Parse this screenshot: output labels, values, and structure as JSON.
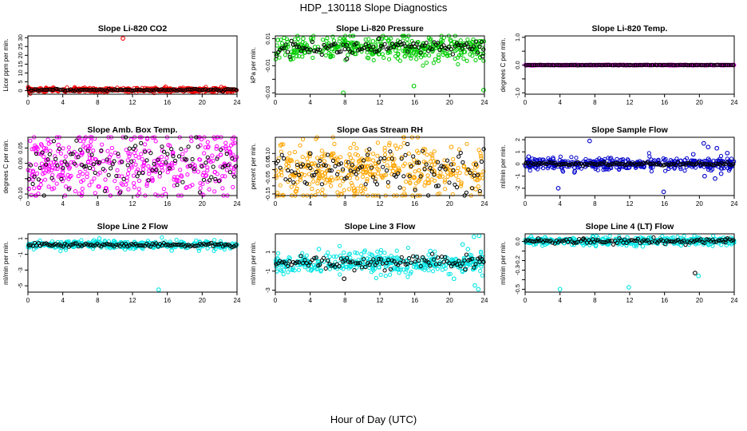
{
  "page": {
    "title": "HDP_130118  Slope Diagnostics",
    "xcaption": "Hour of Day (UTC)"
  },
  "colors": {
    "axis": "#000000",
    "hourly_points": "#000000"
  },
  "chart_data": [
    {
      "type": "scatter",
      "title": "Slope Li-820 CO2",
      "ylabel": "Licor ppm per min.",
      "xlim": [
        0,
        24
      ],
      "ylim": [
        -2,
        31
      ],
      "xticks": [
        0,
        4,
        8,
        12,
        16,
        20,
        24
      ],
      "yticks": [
        0,
        5,
        10,
        15,
        20,
        25,
        30
      ],
      "grid": false,
      "series": [
        {
          "color": "#ff0000",
          "marker": "circle",
          "spread": 0.6,
          "baseline": 0.4,
          "points": [
            [
              10.9,
              29.6
            ],
            [
              15.8,
              2.1
            ],
            [
              0.2,
              0.8
            ],
            [
              7.1,
              1.4
            ],
            [
              21.4,
              1.3
            ]
          ]
        },
        {
          "color": "#000000",
          "marker": "circle",
          "spread": 0.3,
          "baseline": 0.4,
          "points": []
        }
      ]
    },
    {
      "type": "scatter",
      "title": "Slope Li-820 Pressure",
      "ylabel": "kPa per min.",
      "xlim": [
        0,
        24
      ],
      "ylim": [
        -0.031,
        0.012
      ],
      "xticks": [
        0,
        4,
        8,
        12,
        16,
        20,
        24
      ],
      "yticks": [
        -0.03,
        -0.02,
        -0.01,
        0.0,
        0.01
      ],
      "yticklabels": [
        "-0.03",
        "-0.01",
        "0.01"
      ],
      "grid": false,
      "series": [
        {
          "color": "#00cc00",
          "marker": "circle",
          "spread": 0.0045,
          "baseline": 0.003,
          "points": [
            [
              7.8,
              -0.03
            ],
            [
              15.9,
              -0.025
            ],
            [
              23.9,
              -0.028
            ],
            [
              0.3,
              0.009
            ],
            [
              3.2,
              0.01
            ],
            [
              11.2,
              0.008
            ],
            [
              20.1,
              0.009
            ]
          ]
        },
        {
          "color": "#000000",
          "marker": "circle",
          "spread": 0.0025,
          "baseline": 0.003,
          "points": [
            [
              11.9,
              0.01
            ],
            [
              8.2,
              -0.005
            ],
            [
              23.8,
              -0.003
            ]
          ]
        }
      ]
    },
    {
      "type": "scatter",
      "title": "Slope Li-820 Temp.",
      "ylabel": "degrees C per min.",
      "xlim": [
        0,
        24
      ],
      "ylim": [
        -1.05,
        1.05
      ],
      "xticks": [
        0,
        4,
        8,
        12,
        16,
        20,
        24
      ],
      "yticks": [
        -1.0,
        -0.5,
        0.0,
        0.5,
        1.0
      ],
      "yticklabels": [
        "-1.0",
        "0.0",
        "1.0"
      ],
      "grid": false,
      "series": [
        {
          "color": "#ff00ff",
          "marker": "circle",
          "spread": 0.005,
          "baseline": 0.0,
          "points": []
        },
        {
          "color": "#000000",
          "marker": "circle",
          "spread": 0.004,
          "baseline": 0.0,
          "points": []
        }
      ]
    },
    {
      "type": "scatter",
      "title": "Slope Amb. Box Temp.",
      "ylabel": "degrees C per min.",
      "xlim": [
        0,
        24
      ],
      "ylim": [
        -0.105,
        0.085
      ],
      "xticks": [
        0,
        4,
        8,
        12,
        16,
        20,
        24
      ],
      "yticks": [
        -0.1,
        -0.05,
        0.0,
        0.05
      ],
      "yticklabels": [
        "-0.10",
        "0.00",
        "0.05"
      ],
      "grid": false,
      "series": [
        {
          "color": "#ff00ff",
          "marker": "circle",
          "spread": 0.06,
          "baseline": -0.01,
          "points": [
            [
              15.8,
              -0.1
            ],
            [
              23.5,
              0.08
            ],
            [
              3.5,
              0.06
            ]
          ]
        },
        {
          "color": "#000000",
          "marker": "circle",
          "spread": 0.04,
          "baseline": -0.01,
          "points": []
        }
      ]
    },
    {
      "type": "scatter",
      "title": "Slope Gas Stream RH",
      "ylabel": "percent per min.",
      "xlim": [
        0,
        24
      ],
      "ylim": [
        -0.16,
        0.2
      ],
      "xticks": [
        0,
        4,
        8,
        12,
        16,
        20,
        24
      ],
      "yticks": [
        -0.15,
        -0.1,
        -0.05,
        0.0,
        0.05,
        0.1
      ],
      "yticklabels": [
        "-0.15",
        "-0.05",
        "0.05",
        "0.10"
      ],
      "grid": false,
      "series": [
        {
          "color": "#ffa500",
          "marker": "circle",
          "spread": 0.09,
          "baseline": 0.0,
          "points": [
            [
              0.6,
              0.15
            ],
            [
              7.5,
              -0.15
            ],
            [
              20.2,
              0.14
            ],
            [
              23.0,
              -0.12
            ]
          ]
        },
        {
          "color": "#000000",
          "marker": "circle",
          "spread": 0.06,
          "baseline": 0.0,
          "points": [
            [
              18.7,
              -0.1
            ],
            [
              4.0,
              0.1
            ]
          ]
        }
      ]
    },
    {
      "type": "scatter",
      "title": "Slope Sample Flow",
      "ylabel": "ml/min per min.",
      "xlim": [
        0,
        24
      ],
      "ylim": [
        -2.6,
        2.2
      ],
      "xticks": [
        0,
        4,
        8,
        12,
        16,
        20,
        24
      ],
      "yticks": [
        -2,
        -1,
        0,
        1,
        2
      ],
      "grid": false,
      "series": [
        {
          "color": "#0000cc",
          "marker": "circle",
          "spread": 0.25,
          "baseline": 0.0,
          "points": [
            [
              3.8,
              -2.0
            ],
            [
              7.4,
              1.9
            ],
            [
              15.9,
              -2.3
            ],
            [
              20.5,
              1.7
            ],
            [
              21.0,
              1.4
            ],
            [
              22.0,
              1.3
            ],
            [
              20.6,
              -1.0
            ],
            [
              21.8,
              -1.2
            ],
            [
              22.5,
              -0.8
            ],
            [
              19.3,
              0.8
            ],
            [
              23.2,
              0.9
            ],
            [
              0.4,
              0.6
            ],
            [
              3.2,
              0.5
            ],
            [
              5.7,
              -0.6
            ]
          ]
        },
        {
          "color": "#000000",
          "marker": "circle",
          "spread": 0.06,
          "baseline": 0.0,
          "points": []
        }
      ]
    },
    {
      "type": "scatter",
      "title": "Slope Line 2 Flow",
      "ylabel": "ml/min per min.",
      "xlim": [
        0,
        24
      ],
      "ylim": [
        -5.8,
        1.6
      ],
      "xticks": [
        0,
        4,
        8,
        12,
        16,
        20,
        24
      ],
      "yticks": [
        -5,
        -3,
        -1,
        1
      ],
      "grid": false,
      "series": [
        {
          "color": "#00e5e5",
          "marker": "circle",
          "spread": 0.25,
          "baseline": 0.2,
          "points": [
            [
              15.0,
              -5.5
            ],
            [
              8.2,
              1.0
            ],
            [
              16.5,
              -0.5
            ],
            [
              0.1,
              0.3
            ]
          ]
        },
        {
          "color": "#000000",
          "marker": "circle",
          "spread": 0.12,
          "baseline": 0.2,
          "points": []
        }
      ]
    },
    {
      "type": "scatter",
      "title": "Slope Line 3 Flow",
      "ylabel": "ml/min per min.",
      "xlim": [
        0,
        24
      ],
      "ylim": [
        -3.2,
        2.9
      ],
      "xticks": [
        0,
        4,
        8,
        12,
        16,
        20,
        24
      ],
      "yticks": [
        -3,
        -1,
        1
      ],
      "grid": false,
      "series": [
        {
          "color": "#00e5e5",
          "marker": "circle",
          "spread": 0.55,
          "baseline": -0.2,
          "points": [
            [
              22.8,
              2.6
            ],
            [
              23.4,
              2.7
            ],
            [
              21.5,
              1.8
            ],
            [
              22.9,
              -2.5
            ],
            [
              23.3,
              -2.9
            ],
            [
              20.5,
              -1.8
            ],
            [
              22.1,
              1.3
            ],
            [
              10.2,
              1.0
            ],
            [
              17.8,
              1.1
            ],
            [
              5.0,
              1.3
            ]
          ]
        },
        {
          "color": "#000000",
          "marker": "circle",
          "spread": 0.35,
          "baseline": -0.1,
          "points": [
            [
              7.9,
              -1.8
            ],
            [
              23.5,
              0.4
            ],
            [
              21.8,
              -0.8
            ]
          ]
        }
      ]
    },
    {
      "type": "scatter",
      "title": "Slope Line 4 (LT) Flow",
      "ylabel": "ml/min per min.",
      "xlim": [
        0,
        24
      ],
      "ylim": [
        -0.53,
        0.08
      ],
      "xticks": [
        0,
        4,
        8,
        12,
        16,
        20,
        24
      ],
      "yticks": [
        -0.5,
        -0.4,
        -0.3,
        -0.2,
        -0.1,
        0.0
      ],
      "yticklabels": [
        "-0.5",
        "-0.3",
        "-0.2",
        "0.0"
      ],
      "grid": false,
      "series": [
        {
          "color": "#00e5e5",
          "marker": "circle",
          "spread": 0.02,
          "baseline": 0.005,
          "points": [
            [
              4.0,
              -0.5
            ],
            [
              11.9,
              -0.48
            ],
            [
              19.9,
              -0.36
            ],
            [
              17.9,
              -0.04
            ],
            [
              13.5,
              -0.05
            ]
          ]
        },
        {
          "color": "#000000",
          "marker": "circle",
          "spread": 0.015,
          "baseline": 0.005,
          "points": [
            [
              19.5,
              -0.33
            ],
            [
              1.5,
              0.03
            ],
            [
              6.7,
              0.03
            ],
            [
              23.0,
              0.02
            ]
          ]
        }
      ]
    }
  ]
}
